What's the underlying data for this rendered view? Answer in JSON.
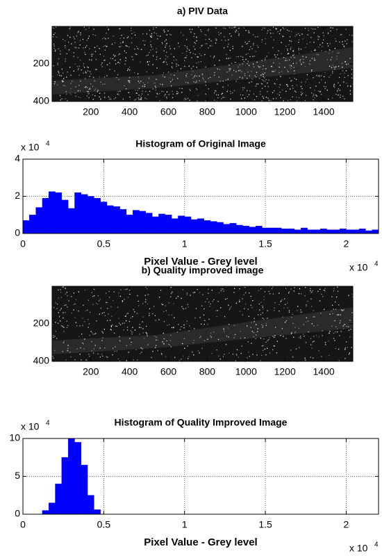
{
  "chart_data": [
    {
      "type": "image",
      "title": "a) PIV Data",
      "xlim": [
        0.5,
        1550
      ],
      "ylim": [
        0.5,
        400.5
      ],
      "y_reversed": true,
      "xticks": [
        200,
        400,
        600,
        800,
        1000,
        1200,
        1400
      ],
      "yticks": [
        200,
        400
      ]
    },
    {
      "type": "histogram",
      "title": "Histogram of Original Image",
      "xlabel": "Pixel Value - Grey level",
      "color": "#0000ff",
      "bins": [
        0,
        0.04,
        0.08,
        0.12,
        0.16,
        0.2,
        0.24,
        0.28,
        0.32,
        0.36,
        0.4,
        0.44,
        0.48,
        0.52,
        0.56,
        0.6,
        0.64,
        0.68,
        0.72,
        0.76,
        0.8,
        0.84,
        0.88,
        0.92,
        0.96,
        1,
        1.04,
        1.08,
        1.12,
        1.16,
        1.2,
        1.24,
        1.28,
        1.32,
        1.36,
        1.4,
        1.44,
        1.48,
        1.52,
        1.56,
        1.6,
        1.64,
        1.68,
        1.72,
        1.76,
        1.8,
        1.84,
        1.88,
        1.92,
        1.96,
        2,
        2.04,
        2.08,
        2.12,
        2.16,
        2.2
      ],
      "counts": [
        0.7,
        1.0,
        1.4,
        1.9,
        2.25,
        2.2,
        1.8,
        1.35,
        2.2,
        2.1,
        2.0,
        1.9,
        1.7,
        1.5,
        1.45,
        1.3,
        1.0,
        1.25,
        1.2,
        1.1,
        0.9,
        1.05,
        1.0,
        0.8,
        0.95,
        0.9,
        0.75,
        0.8,
        0.7,
        0.65,
        0.6,
        0.5,
        0.55,
        0.45,
        0.4,
        0.35,
        0.4,
        0.3,
        0.3,
        0.3,
        0.25,
        0.25,
        0.2,
        0.3,
        0.2,
        0.2,
        0.25,
        0.2,
        0.2,
        0.25,
        0.2,
        0.2,
        0.25,
        0.15,
        0.2
      ],
      "xlim": [
        0,
        2.2
      ],
      "ylim": [
        0,
        4
      ],
      "xticks": [
        0,
        0.5,
        1,
        1.5,
        2
      ],
      "yticks": [
        0,
        2,
        4
      ],
      "grid": true,
      "x_exponent": {
        "base": "x 10",
        "power": "4"
      },
      "y_exponent": {
        "base": "x 10",
        "power": "4"
      }
    },
    {
      "type": "image",
      "title": "b) Quality improved image",
      "xlim": [
        0.5,
        1550
      ],
      "ylim": [
        0.5,
        400.5
      ],
      "y_reversed": true,
      "xticks": [
        200,
        400,
        600,
        800,
        1000,
        1200,
        1400
      ],
      "yticks": [
        200,
        400
      ]
    },
    {
      "type": "histogram",
      "title": "Histogram of Quality Improved Image",
      "xlabel": "Pixel Value - Grey level",
      "color": "#0000ff",
      "bins": [
        0.12,
        0.16,
        0.2,
        0.24,
        0.28,
        0.32,
        0.36,
        0.4,
        0.44,
        0.48
      ],
      "counts": [
        0.5,
        1.5,
        4,
        7.5,
        10,
        9.5,
        6.5,
        2.5,
        0.6
      ],
      "xlim": [
        0,
        2.2
      ],
      "ylim": [
        0,
        10
      ],
      "xticks": [
        0,
        0.5,
        1,
        1.5,
        2
      ],
      "yticks": [
        0,
        5,
        10
      ],
      "grid": true,
      "x_exponent": {
        "base": "x 10",
        "power": "4"
      },
      "y_exponent": {
        "base": "x 10",
        "power": "4"
      }
    }
  ]
}
